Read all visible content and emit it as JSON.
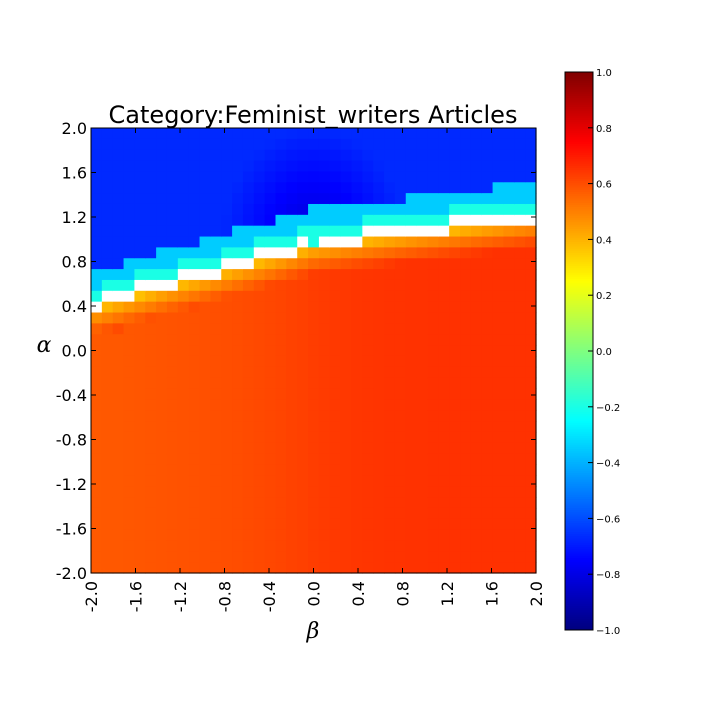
{
  "chart_data": {
    "type": "heatmap",
    "title": "Category:Feminist_writers Articles",
    "xlabel": "β",
    "ylabel": "α",
    "xlim": [
      -2.0,
      2.0
    ],
    "ylim": [
      -2.0,
      2.0
    ],
    "x_ticks": [
      "-2.0",
      "-1.6",
      "-1.2",
      "-0.8",
      "-0.4",
      "0.0",
      "0.4",
      "0.8",
      "1.2",
      "1.6",
      "2.0"
    ],
    "y_ticks": [
      "-2.0",
      "-1.6",
      "-1.2",
      "-0.8",
      "-0.4",
      "0.0",
      "0.4",
      "0.8",
      "1.2",
      "1.6",
      "2.0"
    ],
    "grid_resolution": 0.1,
    "colormap": "jet",
    "colorbar": {
      "range": [
        -1.0,
        1.0
      ],
      "ticks": [
        "1.0",
        "0.8",
        "0.6",
        "0.4",
        "0.2",
        "0.0",
        "−0.2",
        "−0.4",
        "−0.6",
        "−0.8",
        "−1.0"
      ]
    },
    "regions": [
      {
        "name": "lower",
        "value_range": [
          0.3,
          0.68
        ],
        "description_values": "alpha below boundary: ~0.6-0.66, near-boundary rows ~0.3"
      },
      {
        "name": "upper",
        "value_range": [
          -0.85,
          -0.15
        ],
        "description_values": "alpha above boundary: ~-0.82 near beta=0, rising to ~-0.2 toward white gap"
      }
    ]
  }
}
